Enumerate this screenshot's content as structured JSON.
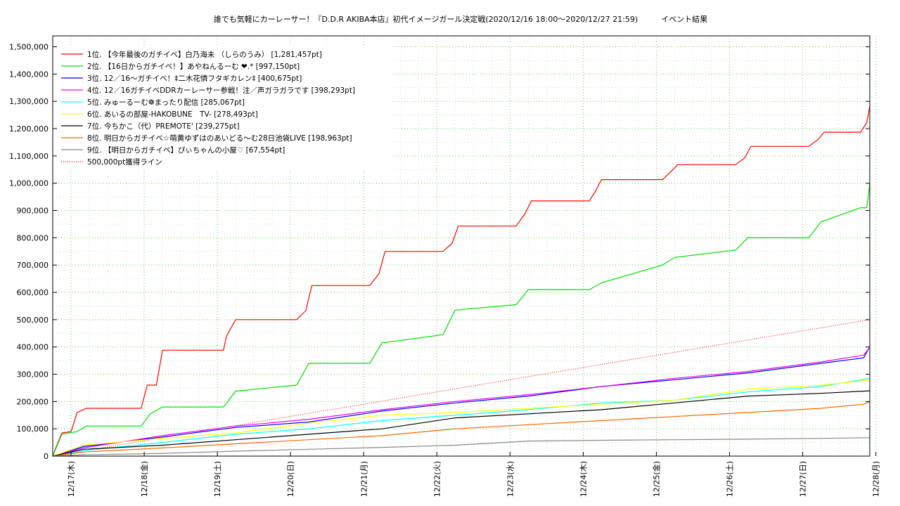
{
  "chart_data": {
    "type": "line",
    "title": "誰でも気軽にカーレーサー！『D.D.R AKIBA本店』初代イメージガール決定戦(2020/12/16 18:00〜2020/12/27 21:59)　　　イベント結果",
    "xlabel": "",
    "ylabel": "",
    "x_ticks": [
      "12/17(木)",
      "12/18(金)",
      "12/19(土)",
      "12/20(日)",
      "12/21(月)",
      "12/22(火)",
      "12/23(水)",
      "12/24(木)",
      "12/25(金)",
      "12/26(土)",
      "12/27(日)",
      "12/28(月)"
    ],
    "xlim": [
      "2020-12-16 18:00",
      "2020-12-27 22:00"
    ],
    "ylim": [
      0,
      1540000
    ],
    "y_ticks": [
      "0",
      "100,000",
      "200,000",
      "300,000",
      "400,000",
      "500,000",
      "600,000",
      "700,000",
      "800,000",
      "900,000",
      "1,000,000",
      "1,100,000",
      "1,200,000",
      "1,300,000",
      "1,400,000",
      "1,500,000"
    ],
    "grid": true,
    "legend_position": "top-left",
    "threshold": {
      "name": "500,000pt獲得ライン",
      "color": "#ff0000",
      "x": [
        "2020-12-16 18:00",
        "2020-12-27 22:00"
      ],
      "y": [
        0,
        500000
      ]
    },
    "series": [
      {
        "name": "1位. 【今年最後のガチイベ】白乃海未 （しらのうみ） [1,281,457pt]",
        "color": "#ff0000",
        "x": [
          "2020-12-16 18:00",
          "2020-12-16 19:00",
          "2020-12-16 21:00",
          "2020-12-17 00:00",
          "2020-12-17 02:00",
          "2020-12-17 05:00",
          "2020-12-17 23:00",
          "2020-12-18 01:00",
          "2020-12-18 04:00",
          "2020-12-18 06:00",
          "2020-12-19 02:00",
          "2020-12-19 03:00",
          "2020-12-19 06:00",
          "2020-12-20 02:00",
          "2020-12-20 05:00",
          "2020-12-20 07:00",
          "2020-12-21 02:00",
          "2020-12-21 05:00",
          "2020-12-21 07:00",
          "2020-12-22 02:00",
          "2020-12-22 05:00",
          "2020-12-22 07:00",
          "2020-12-23 02:00",
          "2020-12-23 05:00",
          "2020-12-23 07:00",
          "2020-12-24 02:00",
          "2020-12-24 04:00",
          "2020-12-24 06:00",
          "2020-12-25 02:00",
          "2020-12-25 05:00",
          "2020-12-25 07:00",
          "2020-12-26 02:00",
          "2020-12-26 05:00",
          "2020-12-26 07:00",
          "2020-12-27 02:00",
          "2020-12-27 05:00",
          "2020-12-27 07:00",
          "2020-12-27 19:00",
          "2020-12-27 21:00",
          "2020-12-27 22:00"
        ],
        "y": [
          0,
          30000,
          85000,
          90000,
          160000,
          175000,
          175000,
          260000,
          260000,
          388000,
          388000,
          440000,
          500000,
          500000,
          533000,
          625000,
          625000,
          668000,
          750000,
          750000,
          780000,
          843000,
          843000,
          890000,
          935000,
          935000,
          970000,
          1013000,
          1013000,
          1045000,
          1068000,
          1068000,
          1093000,
          1135000,
          1135000,
          1160000,
          1187000,
          1187000,
          1222000,
          1281457
        ]
      },
      {
        "name": "2位. 【16日からガチイベ！】あやねんるーむ ❤︎.* [997,150pt]",
        "color": "#00dd00",
        "x": [
          "2020-12-16 18:00",
          "2020-12-16 21:00",
          "2020-12-17 02:00",
          "2020-12-17 05:00",
          "2020-12-17 23:00",
          "2020-12-18 02:00",
          "2020-12-18 06:00",
          "2020-12-19 02:00",
          "2020-12-19 06:00",
          "2020-12-20 02:00",
          "2020-12-20 06:00",
          "2020-12-21 02:00",
          "2020-12-21 06:00",
          "2020-12-22 02:00",
          "2020-12-22 06:00",
          "2020-12-23 02:00",
          "2020-12-23 06:00",
          "2020-12-24 02:00",
          "2020-12-24 06:00",
          "2020-12-25 02:00",
          "2020-12-25 06:00",
          "2020-12-26 02:00",
          "2020-12-26 06:00",
          "2020-12-27 02:00",
          "2020-12-27 06:00",
          "2020-12-27 19:00",
          "2020-12-27 21:00",
          "2020-12-27 22:00"
        ],
        "y": [
          0,
          80000,
          90000,
          110000,
          110000,
          155000,
          180000,
          180000,
          238000,
          260000,
          340000,
          340000,
          415000,
          445000,
          535000,
          555000,
          610000,
          610000,
          635000,
          700000,
          728000,
          755000,
          800000,
          800000,
          858000,
          910000,
          910000,
          997150
        ]
      },
      {
        "name": "3位. 12／16〜ガチイベ！‡二木花憐フタギカレン‡ [400,675pt]",
        "color": "#0000ee",
        "x": [
          "2020-12-16 18:00",
          "2020-12-17 00:00",
          "2020-12-17 04:00",
          "2020-12-18 06:00",
          "2020-12-19 06:00",
          "2020-12-20 06:00",
          "2020-12-21 06:00",
          "2020-12-22 06:00",
          "2020-12-23 06:00",
          "2020-12-24 06:00",
          "2020-12-25 06:00",
          "2020-12-26 06:00",
          "2020-12-27 06:00",
          "2020-12-27 20:00",
          "2020-12-27 22:00"
        ],
        "y": [
          0,
          20000,
          35000,
          70000,
          105000,
          125000,
          165000,
          195000,
          220000,
          255000,
          280000,
          305000,
          340000,
          360000,
          400675
        ]
      },
      {
        "name": "4位. 12／16ガチイベDDRカーレーサー参戦！注／声ガラガラです [398,293pt]",
        "color": "#ee00ee",
        "x": [
          "2020-12-16 18:00",
          "2020-12-17 04:00",
          "2020-12-18 06:00",
          "2020-12-19 06:00",
          "2020-12-20 06:00",
          "2020-12-21 06:00",
          "2020-12-22 06:00",
          "2020-12-23 06:00",
          "2020-12-24 06:00",
          "2020-12-25 06:00",
          "2020-12-26 06:00",
          "2020-12-27 06:00",
          "2020-12-27 20:00",
          "2020-12-27 22:00"
        ],
        "y": [
          0,
          30000,
          75000,
          110000,
          135000,
          170000,
          200000,
          225000,
          255000,
          285000,
          310000,
          345000,
          370000,
          398293
        ]
      },
      {
        "name": "5位. みゅーるーむ❁まったり配信 [285,067pt]",
        "color": "#00ffff",
        "x": [
          "2020-12-16 18:00",
          "2020-12-17 04:00",
          "2020-12-18 06:00",
          "2020-12-19 06:00",
          "2020-12-20 06:00",
          "2020-12-21 06:00",
          "2020-12-22 06:00",
          "2020-12-23 06:00",
          "2020-12-24 06:00",
          "2020-12-25 06:00",
          "2020-12-26 06:00",
          "2020-12-27 06:00",
          "2020-12-27 22:00"
        ],
        "y": [
          0,
          20000,
          50000,
          80000,
          100000,
          130000,
          150000,
          170000,
          195000,
          205000,
          235000,
          255000,
          285067
        ]
      },
      {
        "name": "6位. あいるの部屋-HAKOBUNE　TV- [278,493pt]",
        "color": "#ffff00",
        "x": [
          "2020-12-16 18:00",
          "2020-12-17 04:00",
          "2020-12-18 06:00",
          "2020-12-19 06:00",
          "2020-12-20 06:00",
          "2020-12-21 06:00",
          "2020-12-22 06:00",
          "2020-12-23 06:00",
          "2020-12-24 06:00",
          "2020-12-25 06:00",
          "2020-12-26 06:00",
          "2020-12-27 06:00",
          "2020-12-27 22:00"
        ],
        "y": [
          0,
          40000,
          65000,
          85000,
          120000,
          150000,
          160000,
          175000,
          190000,
          205000,
          245000,
          260000,
          278493
        ]
      },
      {
        "name": "7位. 今ちかこ（代）PREMOTE' [239,275pt]",
        "color": "#000000",
        "x": [
          "2020-12-16 18:00",
          "2020-12-17 04:00",
          "2020-12-18 06:00",
          "2020-12-19 06:00",
          "2020-12-20 06:00",
          "2020-12-21 06:00",
          "2020-12-22 06:00",
          "2020-12-23 06:00",
          "2020-12-24 06:00",
          "2020-12-25 06:00",
          "2020-12-26 06:00",
          "2020-12-27 06:00",
          "2020-12-27 22:00"
        ],
        "y": [
          0,
          25000,
          40000,
          60000,
          80000,
          100000,
          140000,
          155000,
          170000,
          195000,
          220000,
          230000,
          239275
        ]
      },
      {
        "name": "8位. 明日からガチイベ☆萌黄ゆずはのあいどる〜む28日池袋LIVE [198,963pt]",
        "color": "#ff6600",
        "x": [
          "2020-12-16 18:00",
          "2020-12-17 04:00",
          "2020-12-18 06:00",
          "2020-12-19 06:00",
          "2020-12-20 06:00",
          "2020-12-21 06:00",
          "2020-12-22 06:00",
          "2020-12-23 06:00",
          "2020-12-24 06:00",
          "2020-12-25 06:00",
          "2020-12-26 06:00",
          "2020-12-27 06:00",
          "2020-12-27 20:00",
          "2020-12-27 22:00"
        ],
        "y": [
          0,
          15000,
          30000,
          45000,
          60000,
          75000,
          100000,
          115000,
          130000,
          145000,
          160000,
          175000,
          190000,
          198963
        ]
      },
      {
        "name": "9位. 【明日からガチイベ】ぴぃちゃんの小屋♡ [67,554pt]",
        "color": "#888888",
        "x": [
          "2020-12-16 18:00",
          "2020-12-17 04:00",
          "2020-12-18 06:00",
          "2020-12-19 06:00",
          "2020-12-20 06:00",
          "2020-12-21 06:00",
          "2020-12-22 06:00",
          "2020-12-23 06:00",
          "2020-12-24 06:00",
          "2020-12-25 06:00",
          "2020-12-26 06:00",
          "2020-12-27 06:00",
          "2020-12-27 22:00"
        ],
        "y": [
          0,
          5000,
          10000,
          18000,
          25000,
          32000,
          40000,
          55000,
          58000,
          60000,
          62000,
          65000,
          67554
        ]
      }
    ]
  }
}
